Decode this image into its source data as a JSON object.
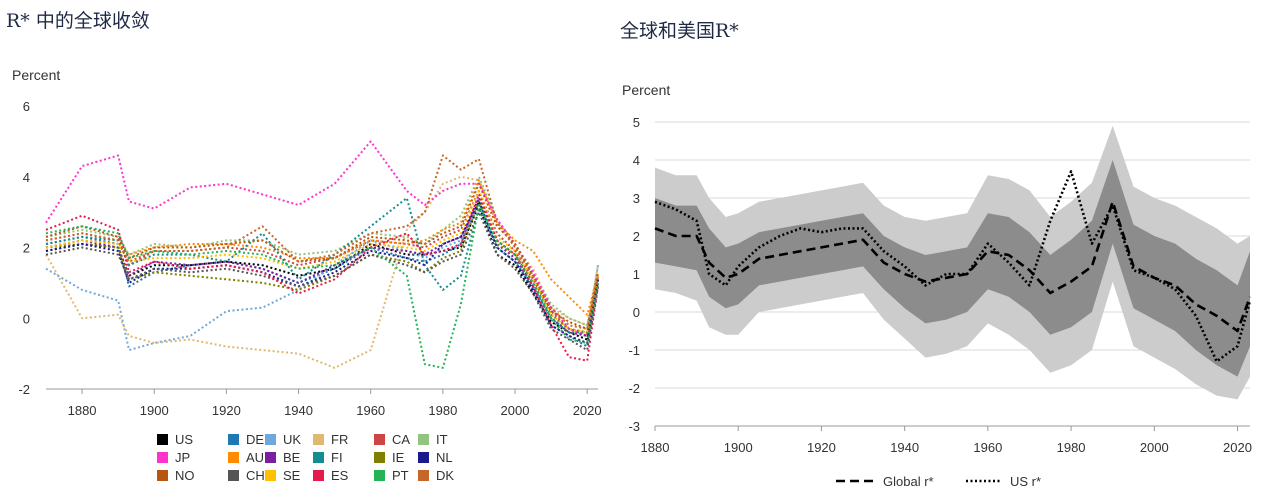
{
  "left": {
    "title": "R* 中的全球收敛",
    "ylabel": "Percent"
  },
  "right": {
    "title": "全球和美国R*",
    "ylabel": "Percent"
  },
  "chart_data": [
    {
      "type": "line",
      "ylabel": "Percent",
      "xlim": [
        1870,
        2023
      ],
      "ylim": [
        -2,
        6
      ],
      "xticks": [
        "1880",
        "1900",
        "1920",
        "1940",
        "1960",
        "1980",
        "2000",
        "2020"
      ],
      "yticks": [
        "-2",
        "0",
        "2",
        "4",
        "6"
      ],
      "grid": false,
      "legend": "bottom",
      "x": [
        1870,
        1880,
        1890,
        1893,
        1900,
        1910,
        1920,
        1930,
        1940,
        1950,
        1960,
        1970,
        1975,
        1980,
        1985,
        1990,
        1995,
        2000,
        2005,
        2010,
        2015,
        2020,
        2023
      ],
      "series": [
        {
          "name": "US",
          "color": "#000000",
          "values": [
            1.9,
            2.1,
            2.0,
            1.2,
            1.5,
            1.5,
            1.6,
            1.5,
            1.2,
            1.4,
            2.1,
            1.8,
            1.8,
            1.9,
            2.0,
            3.2,
            1.8,
            1.5,
            0.7,
            -0.1,
            -0.4,
            -0.6,
            1.2
          ]
        },
        {
          "name": "DE",
          "color": "#1f77b4",
          "values": [
            2.1,
            2.3,
            2.1,
            0.9,
            1.3,
            1.5,
            1.6,
            1.4,
            1.0,
            1.4,
            2.0,
            1.7,
            1.6,
            1.8,
            2.1,
            3.3,
            2.0,
            1.6,
            0.8,
            -0.2,
            -0.5,
            -0.8,
            1.0
          ]
        },
        {
          "name": "UK",
          "color": "#6fa8dc",
          "values": [
            1.4,
            0.8,
            0.5,
            -0.9,
            -0.7,
            -0.5,
            0.2,
            0.3,
            0.8,
            1.5,
            2.2,
            1.9,
            1.7,
            2.0,
            2.2,
            3.4,
            2.2,
            1.8,
            1.0,
            0.0,
            -0.3,
            -0.4,
            1.5
          ]
        },
        {
          "name": "FR",
          "color": "#e0b870",
          "values": [
            1.8,
            0.0,
            0.1,
            -0.5,
            -0.7,
            -0.6,
            -0.8,
            -0.9,
            -1.0,
            -1.4,
            -0.9,
            2.5,
            3.0,
            3.8,
            4.0,
            3.9,
            2.8,
            2.0,
            1.4,
            0.3,
            0.0,
            -0.2,
            1.5
          ]
        },
        {
          "name": "CA",
          "color": "#cc4444",
          "values": [
            2.2,
            2.4,
            2.2,
            1.5,
            1.9,
            1.9,
            2.0,
            1.9,
            1.5,
            1.7,
            2.2,
            2.1,
            2.0,
            2.3,
            2.5,
            3.6,
            2.4,
            1.9,
            1.1,
            0.2,
            -0.3,
            -0.5,
            1.2
          ]
        },
        {
          "name": "IT",
          "color": "#93c47d",
          "values": [
            2.3,
            2.5,
            2.3,
            1.8,
            2.1,
            2.0,
            2.2,
            2.2,
            1.8,
            1.9,
            2.4,
            2.3,
            2.1,
            2.5,
            2.9,
            4.0,
            2.8,
            2.1,
            1.3,
            0.4,
            0.0,
            -0.2,
            1.3
          ]
        },
        {
          "name": "JP",
          "color": "#ff33cc",
          "values": [
            2.7,
            4.3,
            4.6,
            3.3,
            3.1,
            3.7,
            3.8,
            3.5,
            3.2,
            3.8,
            5.0,
            3.6,
            3.2,
            3.6,
            3.8,
            3.8,
            2.8,
            2.1,
            1.3,
            0.3,
            -0.3,
            -0.5,
            1.0
          ]
        },
        {
          "name": "AU",
          "color": "#ff8c00",
          "values": [
            2.0,
            2.2,
            2.1,
            1.8,
            2.0,
            2.1,
            2.1,
            2.0,
            1.7,
            1.7,
            2.2,
            2.1,
            2.2,
            2.5,
            2.7,
            3.9,
            2.7,
            2.2,
            1.9,
            1.1,
            0.6,
            0.1,
            1.2
          ]
        },
        {
          "name": "BE",
          "color": "#7a1fa2",
          "values": [
            2.0,
            2.2,
            2.0,
            1.2,
            1.6,
            1.5,
            1.6,
            1.4,
            1.0,
            1.5,
            2.0,
            1.9,
            1.8,
            2.1,
            2.3,
            3.4,
            2.1,
            1.7,
            0.9,
            0.0,
            -0.4,
            -0.5,
            1.1
          ]
        },
        {
          "name": "FI",
          "color": "#138d90",
          "values": [
            2.1,
            2.3,
            2.2,
            1.5,
            1.8,
            1.8,
            1.6,
            2.4,
            1.1,
            1.8,
            2.6,
            3.4,
            1.5,
            0.8,
            1.2,
            3.1,
            2.0,
            1.6,
            0.9,
            0.0,
            -0.4,
            -0.4,
            1.1
          ]
        },
        {
          "name": "IE",
          "color": "#808000",
          "values": [
            2.0,
            2.1,
            2.0,
            1.1,
            1.3,
            1.2,
            1.1,
            1.0,
            0.8,
            1.2,
            1.8,
            1.6,
            1.3,
            1.7,
            1.9,
            3.3,
            2.1,
            1.8,
            1.0,
            0.1,
            -0.3,
            -0.4,
            1.0
          ]
        },
        {
          "name": "NL",
          "color": "#1a1a8c",
          "values": [
            1.9,
            2.1,
            1.9,
            1.0,
            1.4,
            1.4,
            1.5,
            1.3,
            0.9,
            1.3,
            1.9,
            1.7,
            1.5,
            2.1,
            2.3,
            3.3,
            2.0,
            1.6,
            0.8,
            -0.2,
            -0.5,
            -0.7,
            1.1
          ]
        },
        {
          "name": "NO",
          "color": "#b8560f",
          "values": [
            2.3,
            2.6,
            2.3,
            1.7,
            2.0,
            2.0,
            2.1,
            2.2,
            1.6,
            1.7,
            2.3,
            2.2,
            2.1,
            2.4,
            2.6,
            3.8,
            2.6,
            2.1,
            1.2,
            0.2,
            -0.1,
            -0.3,
            1.3
          ]
        },
        {
          "name": "CH",
          "color": "#555555",
          "values": [
            1.8,
            2.0,
            1.8,
            1.1,
            1.4,
            1.3,
            1.4,
            1.2,
            0.9,
            1.2,
            1.8,
            1.5,
            1.3,
            1.6,
            1.8,
            3.0,
            1.8,
            1.4,
            0.7,
            -0.3,
            -0.6,
            -0.9,
            0.9
          ]
        },
        {
          "name": "SE",
          "color": "#ffc000",
          "values": [
            2.0,
            2.2,
            2.1,
            1.6,
            1.7,
            1.7,
            1.8,
            1.7,
            1.4,
            1.6,
            2.1,
            2.0,
            1.9,
            2.2,
            2.4,
            3.6,
            2.3,
            1.9,
            1.1,
            0.1,
            -0.3,
            -0.4,
            1.2
          ]
        },
        {
          "name": "ES",
          "color": "#e6194b",
          "values": [
            2.5,
            2.9,
            2.5,
            1.3,
            1.6,
            1.4,
            1.5,
            1.3,
            0.7,
            1.1,
            2.0,
            2.4,
            1.8,
            1.9,
            2.1,
            3.5,
            2.2,
            1.8,
            0.9,
            -0.2,
            -1.1,
            -1.2,
            0.9
          ]
        },
        {
          "name": "PT",
          "color": "#22b455",
          "values": [
            2.4,
            2.6,
            2.4,
            1.7,
            1.9,
            1.8,
            1.9,
            1.8,
            1.4,
            1.5,
            2.0,
            1.2,
            -1.3,
            -1.4,
            0.4,
            3.2,
            2.2,
            1.8,
            1.0,
            0.0,
            -0.6,
            -0.7,
            1.0
          ]
        },
        {
          "name": "DK",
          "color": "#c8662a",
          "values": [
            2.2,
            2.4,
            2.2,
            1.6,
            1.9,
            1.9,
            2.0,
            2.6,
            1.6,
            1.8,
            2.4,
            2.6,
            3.0,
            4.6,
            4.2,
            4.5,
            2.7,
            2.0,
            1.2,
            0.3,
            -0.2,
            -0.3,
            1.2
          ]
        }
      ]
    },
    {
      "type": "line",
      "ylabel": "Percent",
      "xlim": [
        1880,
        2023
      ],
      "ylim": [
        -3,
        5
      ],
      "xticks": [
        "1880",
        "1900",
        "1920",
        "1940",
        "1960",
        "1980",
        "2000",
        "2020"
      ],
      "yticks": [
        "-3",
        "-2",
        "-1",
        "0",
        "1",
        "2",
        "3",
        "4",
        "5"
      ],
      "grid": true,
      "legend": "bottom",
      "x": [
        1880,
        1885,
        1890,
        1893,
        1897,
        1900,
        1905,
        1910,
        1915,
        1920,
        1925,
        1930,
        1935,
        1940,
        1945,
        1950,
        1955,
        1960,
        1965,
        1970,
        1975,
        1980,
        1985,
        1990,
        1995,
        2000,
        2005,
        2010,
        2015,
        2020,
        2023
      ],
      "series": [
        {
          "name": "Global r*",
          "style": "dashed",
          "color": "#000000",
          "values": [
            2.2,
            2.0,
            2.0,
            1.3,
            0.9,
            1.0,
            1.4,
            1.5,
            1.6,
            1.7,
            1.8,
            1.9,
            1.3,
            1.0,
            0.8,
            0.9,
            1.0,
            1.6,
            1.5,
            1.1,
            0.5,
            0.8,
            1.2,
            2.9,
            1.2,
            0.9,
            0.7,
            0.2,
            -0.1,
            -0.5,
            0.4
          ]
        },
        {
          "name": "US r*",
          "style": "dotted",
          "color": "#000000",
          "values": [
            2.9,
            2.7,
            2.4,
            1.0,
            0.7,
            1.2,
            1.7,
            2.0,
            2.2,
            2.1,
            2.2,
            2.2,
            1.6,
            1.2,
            0.7,
            1.0,
            1.0,
            1.8,
            1.3,
            0.7,
            2.4,
            3.7,
            1.8,
            2.8,
            1.1,
            0.9,
            0.6,
            -0.1,
            -1.3,
            -0.9,
            0.3
          ]
        }
      ],
      "bands": [
        {
          "name": "inner",
          "color": "#8c8c8c",
          "lower": [
            1.3,
            1.2,
            1.1,
            0.4,
            0.1,
            0.2,
            0.7,
            0.8,
            0.9,
            1.0,
            1.1,
            1.2,
            0.6,
            0.1,
            -0.3,
            -0.2,
            0.0,
            0.6,
            0.4,
            0.0,
            -0.6,
            -0.4,
            0.0,
            1.8,
            0.1,
            -0.2,
            -0.5,
            -1.0,
            -1.4,
            -1.7,
            -0.9
          ],
          "upper": [
            3.0,
            2.8,
            2.8,
            2.2,
            1.7,
            1.8,
            2.1,
            2.2,
            2.3,
            2.4,
            2.5,
            2.6,
            2.0,
            1.7,
            1.5,
            1.6,
            1.7,
            2.6,
            2.5,
            2.1,
            1.5,
            1.9,
            2.4,
            4.0,
            2.3,
            2.0,
            1.8,
            1.4,
            1.1,
            0.7,
            1.6
          ]
        },
        {
          "name": "outer",
          "color": "#cccccc",
          "lower": [
            0.6,
            0.5,
            0.3,
            -0.4,
            -0.6,
            -0.6,
            0.0,
            0.1,
            0.2,
            0.3,
            0.4,
            0.5,
            -0.2,
            -0.7,
            -1.2,
            -1.1,
            -0.9,
            -0.3,
            -0.6,
            -1.0,
            -1.6,
            -1.4,
            -1.0,
            0.8,
            -0.9,
            -1.2,
            -1.5,
            -1.9,
            -2.2,
            -2.3,
            -1.7
          ],
          "upper": [
            3.8,
            3.6,
            3.6,
            3.0,
            2.5,
            2.6,
            2.9,
            3.0,
            3.1,
            3.2,
            3.3,
            3.4,
            2.8,
            2.5,
            2.4,
            2.5,
            2.6,
            3.6,
            3.5,
            3.2,
            2.5,
            2.9,
            3.4,
            4.9,
            3.3,
            3.0,
            2.8,
            2.5,
            2.2,
            1.8,
            2.0
          ]
        }
      ]
    }
  ]
}
